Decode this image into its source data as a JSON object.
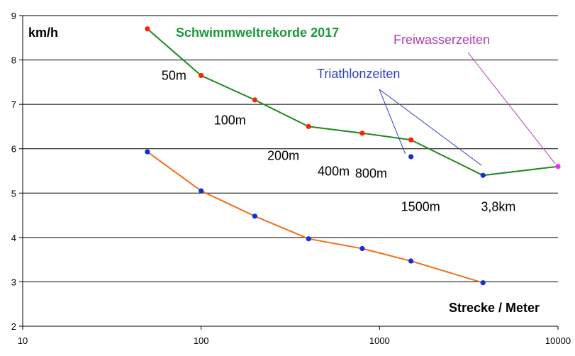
{
  "chart_data": {
    "type": "line",
    "title": "Schwimmweltrekorde 2017",
    "ylabel": "km/h",
    "xlabel": "Strecke / Meter",
    "xscale": "log",
    "xlim": [
      10,
      10000
    ],
    "ylim": [
      2,
      9
    ],
    "x_ticks": [
      "10",
      "100",
      "1000",
      "10000"
    ],
    "y_ticks": [
      "2",
      "3",
      "4",
      "5",
      "6",
      "7",
      "8",
      "9"
    ],
    "grid": "horizontal",
    "colors": {
      "green_line": "#1e8c1e",
      "green_marker": "#ff2200",
      "orange_line": "#f07020",
      "blue_marker": "#1030e0",
      "triathlon": "#3040c0",
      "open_water": "#b040b0",
      "open_water_marker": "#ff22ff",
      "title": "#1a9a3a"
    },
    "series": [
      {
        "x": [
          50,
          100,
          200,
          400,
          800,
          1500,
          3800,
          10000
        ],
        "y": [
          8.7,
          7.65,
          7.1,
          6.5,
          6.35,
          6.2,
          5.4,
          5.6
        ]
      },
      {
        "x": [
          50,
          100,
          200,
          400,
          800,
          1500,
          3800
        ],
        "y": [
          5.93,
          5.05,
          4.48,
          3.97,
          3.75,
          3.47,
          2.98
        ]
      }
    ],
    "extra_points": [
      {
        "x": 1500,
        "y": 5.82
      }
    ],
    "open_water_point": {
      "x": 10000,
      "y": 5.6
    },
    "distance_labels": [
      {
        "text": "50m",
        "x": 60,
        "y": 7.55
      },
      {
        "text": "100m",
        "x": 118,
        "y": 6.55
      },
      {
        "text": "200m",
        "x": 235,
        "y": 5.75
      },
      {
        "text": "400m",
        "x": 450,
        "y": 5.4
      },
      {
        "text": "800m",
        "x": 730,
        "y": 5.35
      },
      {
        "text": "1500m",
        "x": 1320,
        "y": 4.6
      },
      {
        "text": "3,8km",
        "x": 3700,
        "y": 4.6
      }
    ],
    "annotations": {
      "triathlon": "Triathlonzeiten",
      "open_water": "Freiwasserzeiten"
    }
  }
}
